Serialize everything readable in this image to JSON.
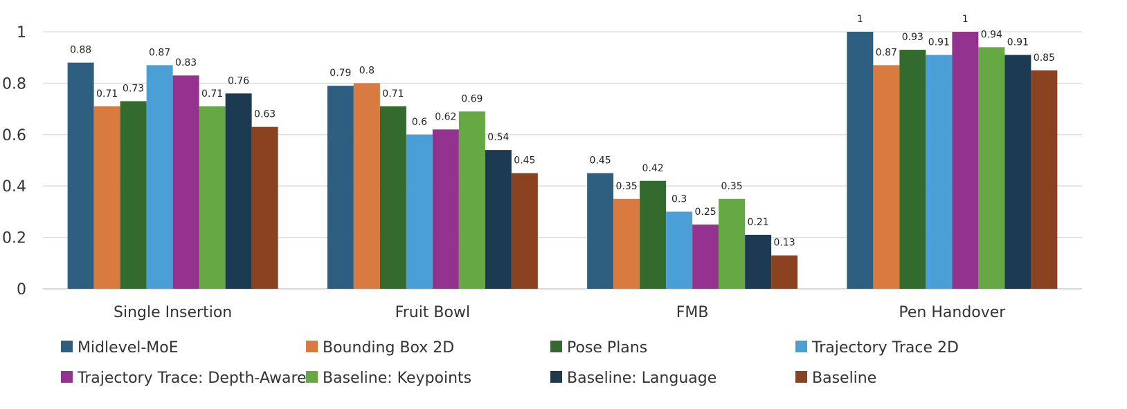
{
  "chart_data": {
    "type": "bar",
    "title": "",
    "xlabel": "",
    "ylabel": "",
    "ylim": [
      0,
      1
    ],
    "yticks": [
      "0",
      "0.2",
      "0.4",
      "0.6",
      "0.8",
      "1"
    ],
    "grid": true,
    "legend_position": "bottom",
    "categories": [
      "Single Insertion",
      "Fruit Bowl",
      "FMB",
      "Pen Handover"
    ],
    "series": [
      {
        "name": "Midlevel-MoE",
        "color": "#2E5F80",
        "values": [
          0.88,
          0.79,
          0.45,
          1
        ],
        "labels": [
          "0.88",
          "0.79",
          "0.45",
          "1"
        ]
      },
      {
        "name": "Bounding Box 2D",
        "color": "#D97A40",
        "values": [
          0.71,
          0.8,
          0.35,
          0.87
        ],
        "labels": [
          "0.71",
          "0.8",
          "0.35",
          "0.87"
        ]
      },
      {
        "name": "Pose Plans",
        "color": "#336B2E",
        "values": [
          0.73,
          0.71,
          0.42,
          0.93
        ],
        "labels": [
          "0.73",
          "0.71",
          "0.42",
          "0.93"
        ]
      },
      {
        "name": "Trajectory Trace 2D",
        "color": "#4A9FD6",
        "values": [
          0.87,
          0.6,
          0.3,
          0.91
        ],
        "labels": [
          "0.87",
          "0.6",
          "0.3",
          "0.91"
        ]
      },
      {
        "name": "Trajectory Trace: Depth-Aware",
        "color": "#94338F",
        "values": [
          0.83,
          0.62,
          0.25,
          1
        ],
        "labels": [
          "0.83",
          "0.62",
          "0.25",
          "1"
        ]
      },
      {
        "name": "Baseline: Keypoints",
        "color": "#66A843",
        "values": [
          0.71,
          0.69,
          0.35,
          0.94
        ],
        "labels": [
          "0.71",
          "0.69",
          "0.35",
          "0.94"
        ]
      },
      {
        "name": "Baseline: Language",
        "color": "#1C3A52",
        "values": [
          0.76,
          0.54,
          0.21,
          0.91
        ],
        "labels": [
          "0.76",
          "0.54",
          "0.21",
          "0.91"
        ]
      },
      {
        "name": "Baseline",
        "color": "#8B4220",
        "values": [
          0.63,
          0.45,
          0.13,
          0.85
        ],
        "labels": [
          "0.63",
          "0.45",
          "0.13",
          "0.85"
        ]
      }
    ]
  }
}
